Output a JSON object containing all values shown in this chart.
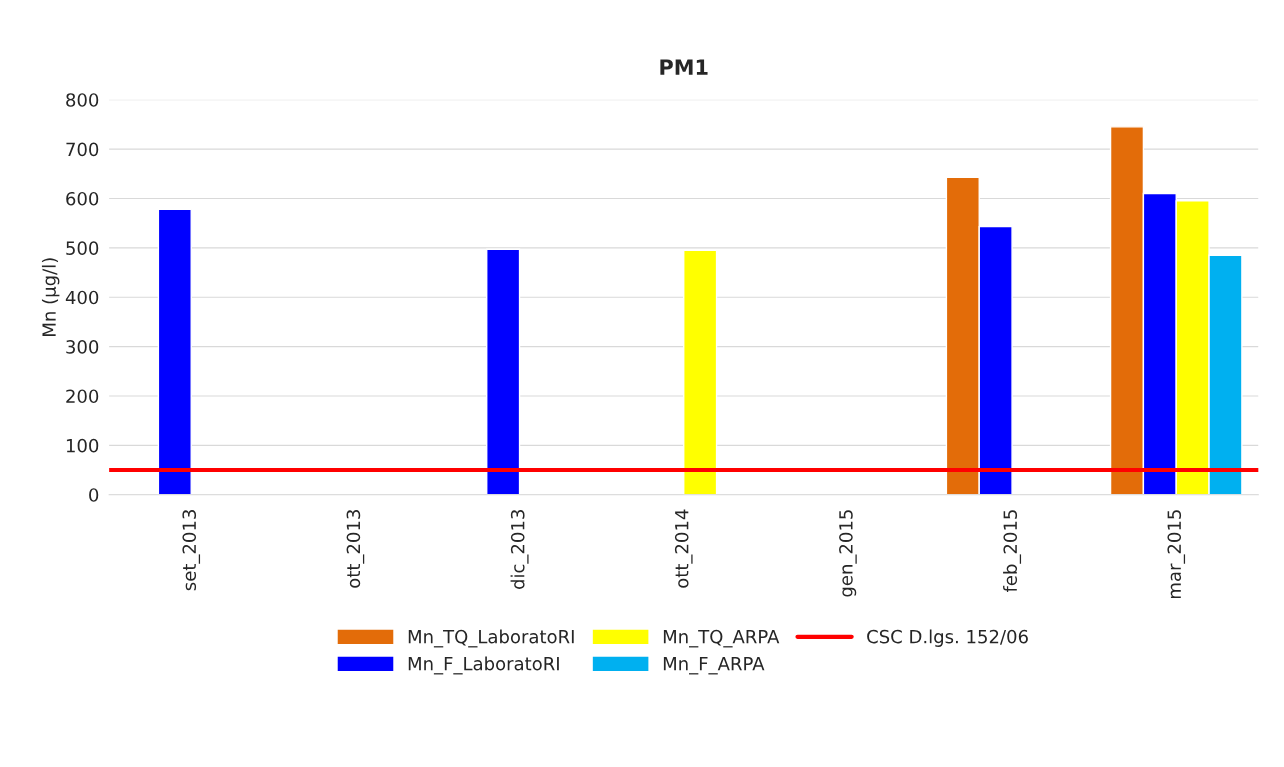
{
  "chart_data": {
    "type": "bar",
    "title": "PM1",
    "ylabel": "Mn (µg/l)",
    "categories": [
      "set_2013",
      "ott_2013",
      "dic_2013",
      "ott_2014",
      "gen_2015",
      "feb_2015",
      "mar_2015"
    ],
    "series": [
      {
        "name": "Mn_TQ_LaboratoRI",
        "color": "#e36c09",
        "values": [
          null,
          null,
          null,
          null,
          null,
          643,
          745
        ]
      },
      {
        "name": "Mn_F_LaboratoRI",
        "color": "#0000ff",
        "values": [
          578,
          null,
          497,
          null,
          null,
          543,
          610
        ]
      },
      {
        "name": "Mn_TQ_ARPA",
        "color": "#ffff00",
        "values": [
          null,
          null,
          null,
          495,
          null,
          null,
          595
        ]
      },
      {
        "name": "Mn_F_ARPA",
        "color": "#00b0f0",
        "values": [
          null,
          null,
          null,
          null,
          null,
          null,
          485
        ]
      }
    ],
    "ref_lines": [
      {
        "axis": "y",
        "value": 50,
        "label": "CSC D.lgs. 152/06",
        "color": "#ff0000",
        "line_style": "solid"
      }
    ],
    "ylim": [
      0,
      800
    ],
    "yticks": [
      0,
      100,
      200,
      300,
      400,
      500,
      600,
      700,
      800
    ],
    "grid": "y",
    "legend": "bottom"
  }
}
